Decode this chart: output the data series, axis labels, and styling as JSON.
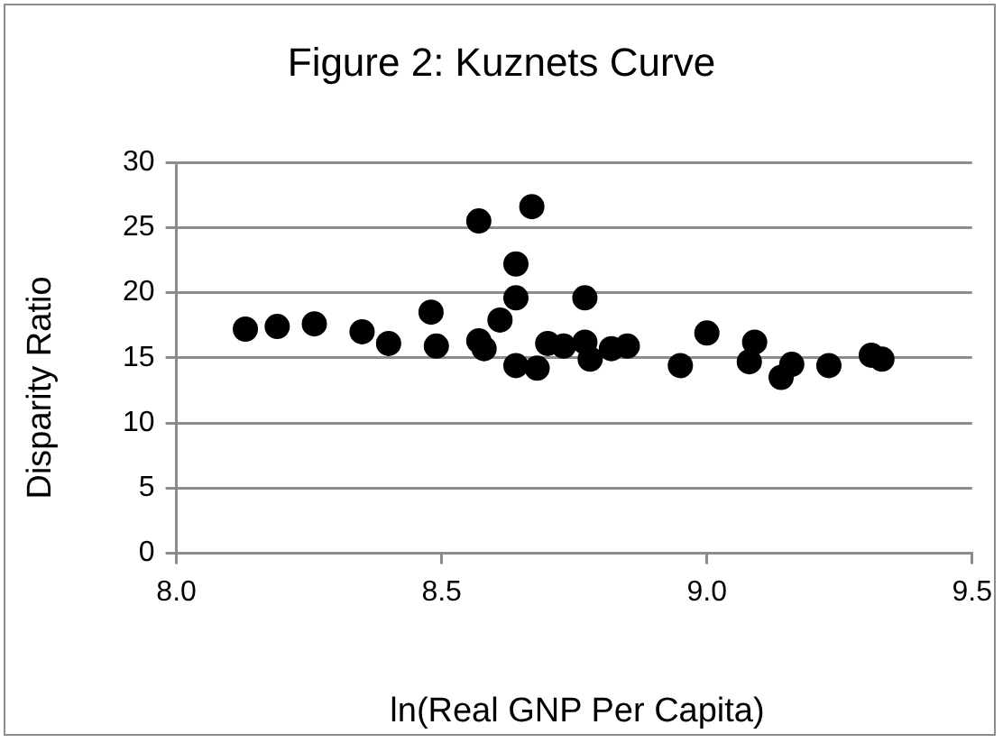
{
  "chart_data": {
    "type": "scatter",
    "title": "Figure 2: Kuznets Curve",
    "xlabel": "ln(Real GNP Per Capita)",
    "ylabel": "Disparity Ratio",
    "x": [
      8.13,
      8.19,
      8.26,
      8.35,
      8.4,
      8.48,
      8.49,
      8.57,
      8.57,
      8.58,
      8.61,
      8.64,
      8.64,
      8.64,
      8.67,
      8.68,
      8.7,
      8.73,
      8.77,
      8.77,
      8.78,
      8.82,
      8.85,
      8.95,
      9.0,
      9.08,
      9.09,
      9.14,
      9.16,
      9.23,
      9.31,
      9.33
    ],
    "series": [
      {
        "color": "#000000",
        "values": [
          17.2,
          17.4,
          17.6,
          17.0,
          16.1,
          18.5,
          15.9,
          25.5,
          16.3,
          15.7,
          17.9,
          22.2,
          19.6,
          14.4,
          26.6,
          14.2,
          16.1,
          15.9,
          16.2,
          19.6,
          14.9,
          15.7,
          15.9,
          14.4,
          16.9,
          14.7,
          16.2,
          13.5,
          14.5,
          14.4,
          15.2,
          14.9
        ]
      }
    ],
    "xlim": [
      8.0,
      9.5
    ],
    "xticks": [
      {
        "value": 8.0,
        "label": "8.0"
      },
      {
        "value": 8.5,
        "label": "8.5"
      },
      {
        "value": 9.0,
        "label": "9.0"
      },
      {
        "value": 9.5,
        "label": "9.5"
      }
    ],
    "ylim": [
      0,
      30
    ],
    "yticks": [
      0,
      5,
      10,
      15,
      20,
      25,
      30
    ],
    "grid": "y",
    "legend": false,
    "marker": "circle"
  }
}
